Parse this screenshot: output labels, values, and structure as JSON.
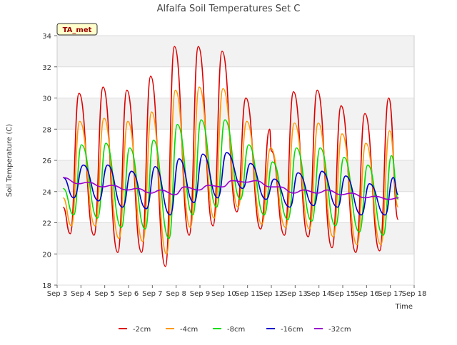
{
  "chart_data": {
    "type": "line",
    "title": "Alfalfa Soil Temperatures Set C",
    "xlabel": "Time",
    "ylabel": "Soil Temperature (C)",
    "annotation": "TA_met",
    "ylim": [
      18,
      34
    ],
    "xlim_days": [
      3,
      18
    ],
    "x_ticks": [
      "Sep 3",
      "Sep 4",
      "Sep 5",
      "Sep 6",
      "Sep 7",
      "Sep 8",
      "Sep 9",
      "Sep 10",
      "Sep 11",
      "Sep 12",
      "Sep 13",
      "Sep 14",
      "Sep 15",
      "Sep 16",
      "Sep 17",
      "Sep 18"
    ],
    "y_ticks": [
      18,
      20,
      22,
      24,
      26,
      28,
      30,
      32,
      34
    ],
    "grid": true,
    "legend_position": "bottom",
    "series": [
      {
        "name": "-2cm",
        "color": "#dd0000",
        "x": [
          3.25,
          3.55,
          3.92,
          4.55,
          4.93,
          5.55,
          5.93,
          6.55,
          6.93,
          7.55,
          7.93,
          8.55,
          8.93,
          9.55,
          9.93,
          10.55,
          10.93,
          11.55,
          11.93,
          12.0,
          12.55,
          12.93,
          13.55,
          13.93,
          14.55,
          14.93,
          15.55,
          15.93,
          16.55,
          16.93,
          17.33
        ],
        "values": [
          23.0,
          21.3,
          30.3,
          21.2,
          30.7,
          20.1,
          30.5,
          20.1,
          31.4,
          19.2,
          33.3,
          21.2,
          33.3,
          21.8,
          33.0,
          22.7,
          30.0,
          21.6,
          28.0,
          26.6,
          21.2,
          30.4,
          21.1,
          30.5,
          20.4,
          29.5,
          20.1,
          29.0,
          20.2,
          30.0,
          22.2
        ]
      },
      {
        "name": "-4cm",
        "color": "#ff9900",
        "x": [
          3.25,
          3.6,
          3.95,
          4.6,
          4.97,
          5.6,
          5.97,
          6.6,
          6.97,
          7.6,
          7.97,
          8.6,
          8.97,
          9.6,
          9.97,
          10.6,
          10.97,
          11.6,
          11.97,
          12.6,
          12.97,
          13.6,
          13.97,
          14.6,
          14.97,
          15.6,
          15.97,
          16.6,
          16.97,
          17.33
        ],
        "values": [
          23.6,
          21.8,
          28.5,
          21.8,
          28.7,
          21.0,
          28.5,
          20.8,
          29.1,
          20.0,
          30.5,
          21.7,
          30.7,
          22.3,
          30.6,
          23.0,
          28.5,
          21.9,
          26.8,
          21.7,
          28.4,
          21.6,
          28.4,
          21.1,
          27.7,
          20.6,
          27.1,
          20.6,
          27.9,
          23.0
        ]
      },
      {
        "name": "-8cm",
        "color": "#00dd00",
        "x": [
          3.25,
          3.7,
          4.02,
          4.7,
          5.05,
          5.7,
          6.05,
          6.7,
          7.05,
          7.7,
          8.05,
          8.7,
          9.05,
          9.7,
          10.05,
          10.7,
          11.05,
          11.7,
          12.05,
          12.7,
          13.05,
          13.7,
          14.05,
          14.7,
          15.05,
          15.7,
          16.05,
          16.7,
          17.05,
          17.33
        ],
        "values": [
          24.2,
          22.5,
          27.0,
          22.3,
          27.1,
          21.7,
          26.8,
          21.6,
          27.3,
          21.0,
          28.3,
          22.5,
          28.6,
          23.0,
          28.6,
          23.5,
          27.0,
          22.5,
          25.9,
          22.2,
          26.8,
          22.1,
          26.8,
          21.8,
          26.2,
          21.4,
          25.7,
          21.2,
          26.3,
          23.5
        ]
      },
      {
        "name": "-16cm",
        "color": "#0000cc",
        "x": [
          3.25,
          3.7,
          4.1,
          4.75,
          5.12,
          5.75,
          6.12,
          6.75,
          7.12,
          7.75,
          8.12,
          8.75,
          9.12,
          9.75,
          10.12,
          10.8,
          11.12,
          11.78,
          12.12,
          12.78,
          13.12,
          13.78,
          14.12,
          14.78,
          15.12,
          15.78,
          16.12,
          16.78,
          17.12,
          17.33
        ],
        "values": [
          24.9,
          23.6,
          25.7,
          23.4,
          25.7,
          23.0,
          25.3,
          22.9,
          25.6,
          22.5,
          26.1,
          23.3,
          26.4,
          23.6,
          26.5,
          24.2,
          25.8,
          23.5,
          24.8,
          23.0,
          25.2,
          23.1,
          25.3,
          23.0,
          25.0,
          22.5,
          24.5,
          22.5,
          24.9,
          23.8
        ]
      },
      {
        "name": "-32cm",
        "color": "#9900cc",
        "x": [
          3.25,
          3.9,
          4.3,
          4.9,
          5.3,
          5.95,
          6.35,
          6.95,
          7.35,
          7.95,
          8.35,
          8.95,
          9.35,
          9.95,
          10.35,
          10.95,
          11.35,
          11.95,
          12.35,
          12.95,
          13.35,
          13.95,
          14.35,
          14.95,
          15.35,
          15.95,
          16.35,
          16.95,
          17.35
        ],
        "values": [
          24.9,
          24.5,
          24.6,
          24.3,
          24.4,
          24.1,
          24.2,
          23.9,
          24.1,
          23.8,
          24.3,
          24.1,
          24.4,
          24.3,
          24.7,
          24.6,
          24.7,
          24.3,
          24.3,
          23.9,
          24.1,
          23.9,
          24.1,
          23.8,
          23.9,
          23.6,
          23.7,
          23.5,
          23.6
        ]
      }
    ]
  }
}
